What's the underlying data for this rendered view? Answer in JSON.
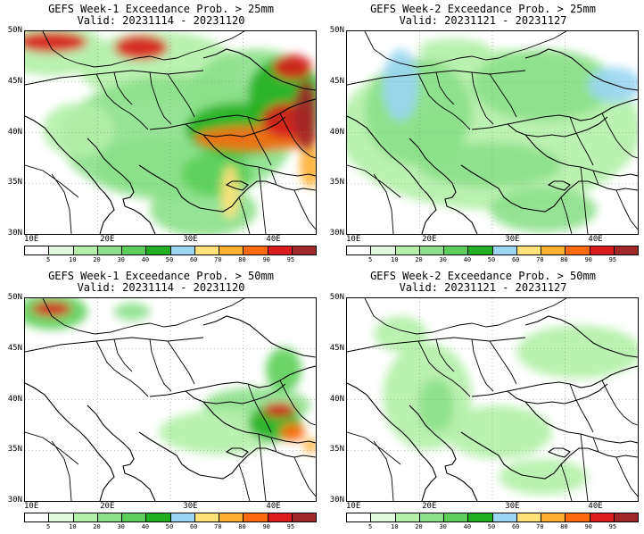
{
  "panels": [
    {
      "id": "p1",
      "title": "GEFS Week-1 Exceedance Prob. > 25mm",
      "valid": "Valid: 20231114 - 20231120",
      "intensity": "high-25"
    },
    {
      "id": "p2",
      "title": "GEFS Week-2 Exceedance Prob. > 25mm",
      "valid": "Valid: 20231121 - 20231127",
      "intensity": "mid-25"
    },
    {
      "id": "p3",
      "title": "GEFS Week-1 Exceedance Prob. > 50mm",
      "valid": "Valid: 20231114 - 20231120",
      "intensity": "high-50"
    },
    {
      "id": "p4",
      "title": "GEFS Week-2 Exceedance Prob. > 50mm",
      "valid": "Valid: 20231121 - 20231127",
      "intensity": "low-50"
    }
  ],
  "lat_labels": [
    "50N",
    "45N",
    "40N",
    "35N",
    "30N"
  ],
  "lon_labels": [
    "10E",
    "20E",
    "30E",
    "40E"
  ],
  "colorbar": {
    "ticks": [
      "5",
      "10",
      "20",
      "30",
      "40",
      "50",
      "60",
      "70",
      "80",
      "90",
      "95"
    ],
    "colors": [
      "#ffffff",
      "#e1f8dc",
      "#b4f0a8",
      "#8ce08a",
      "#5ccf5a",
      "#22b022",
      "#9bd6f2",
      "#ffe27a",
      "#ffb030",
      "#ff6a10",
      "#dc1c1c",
      "#a02828"
    ]
  }
}
